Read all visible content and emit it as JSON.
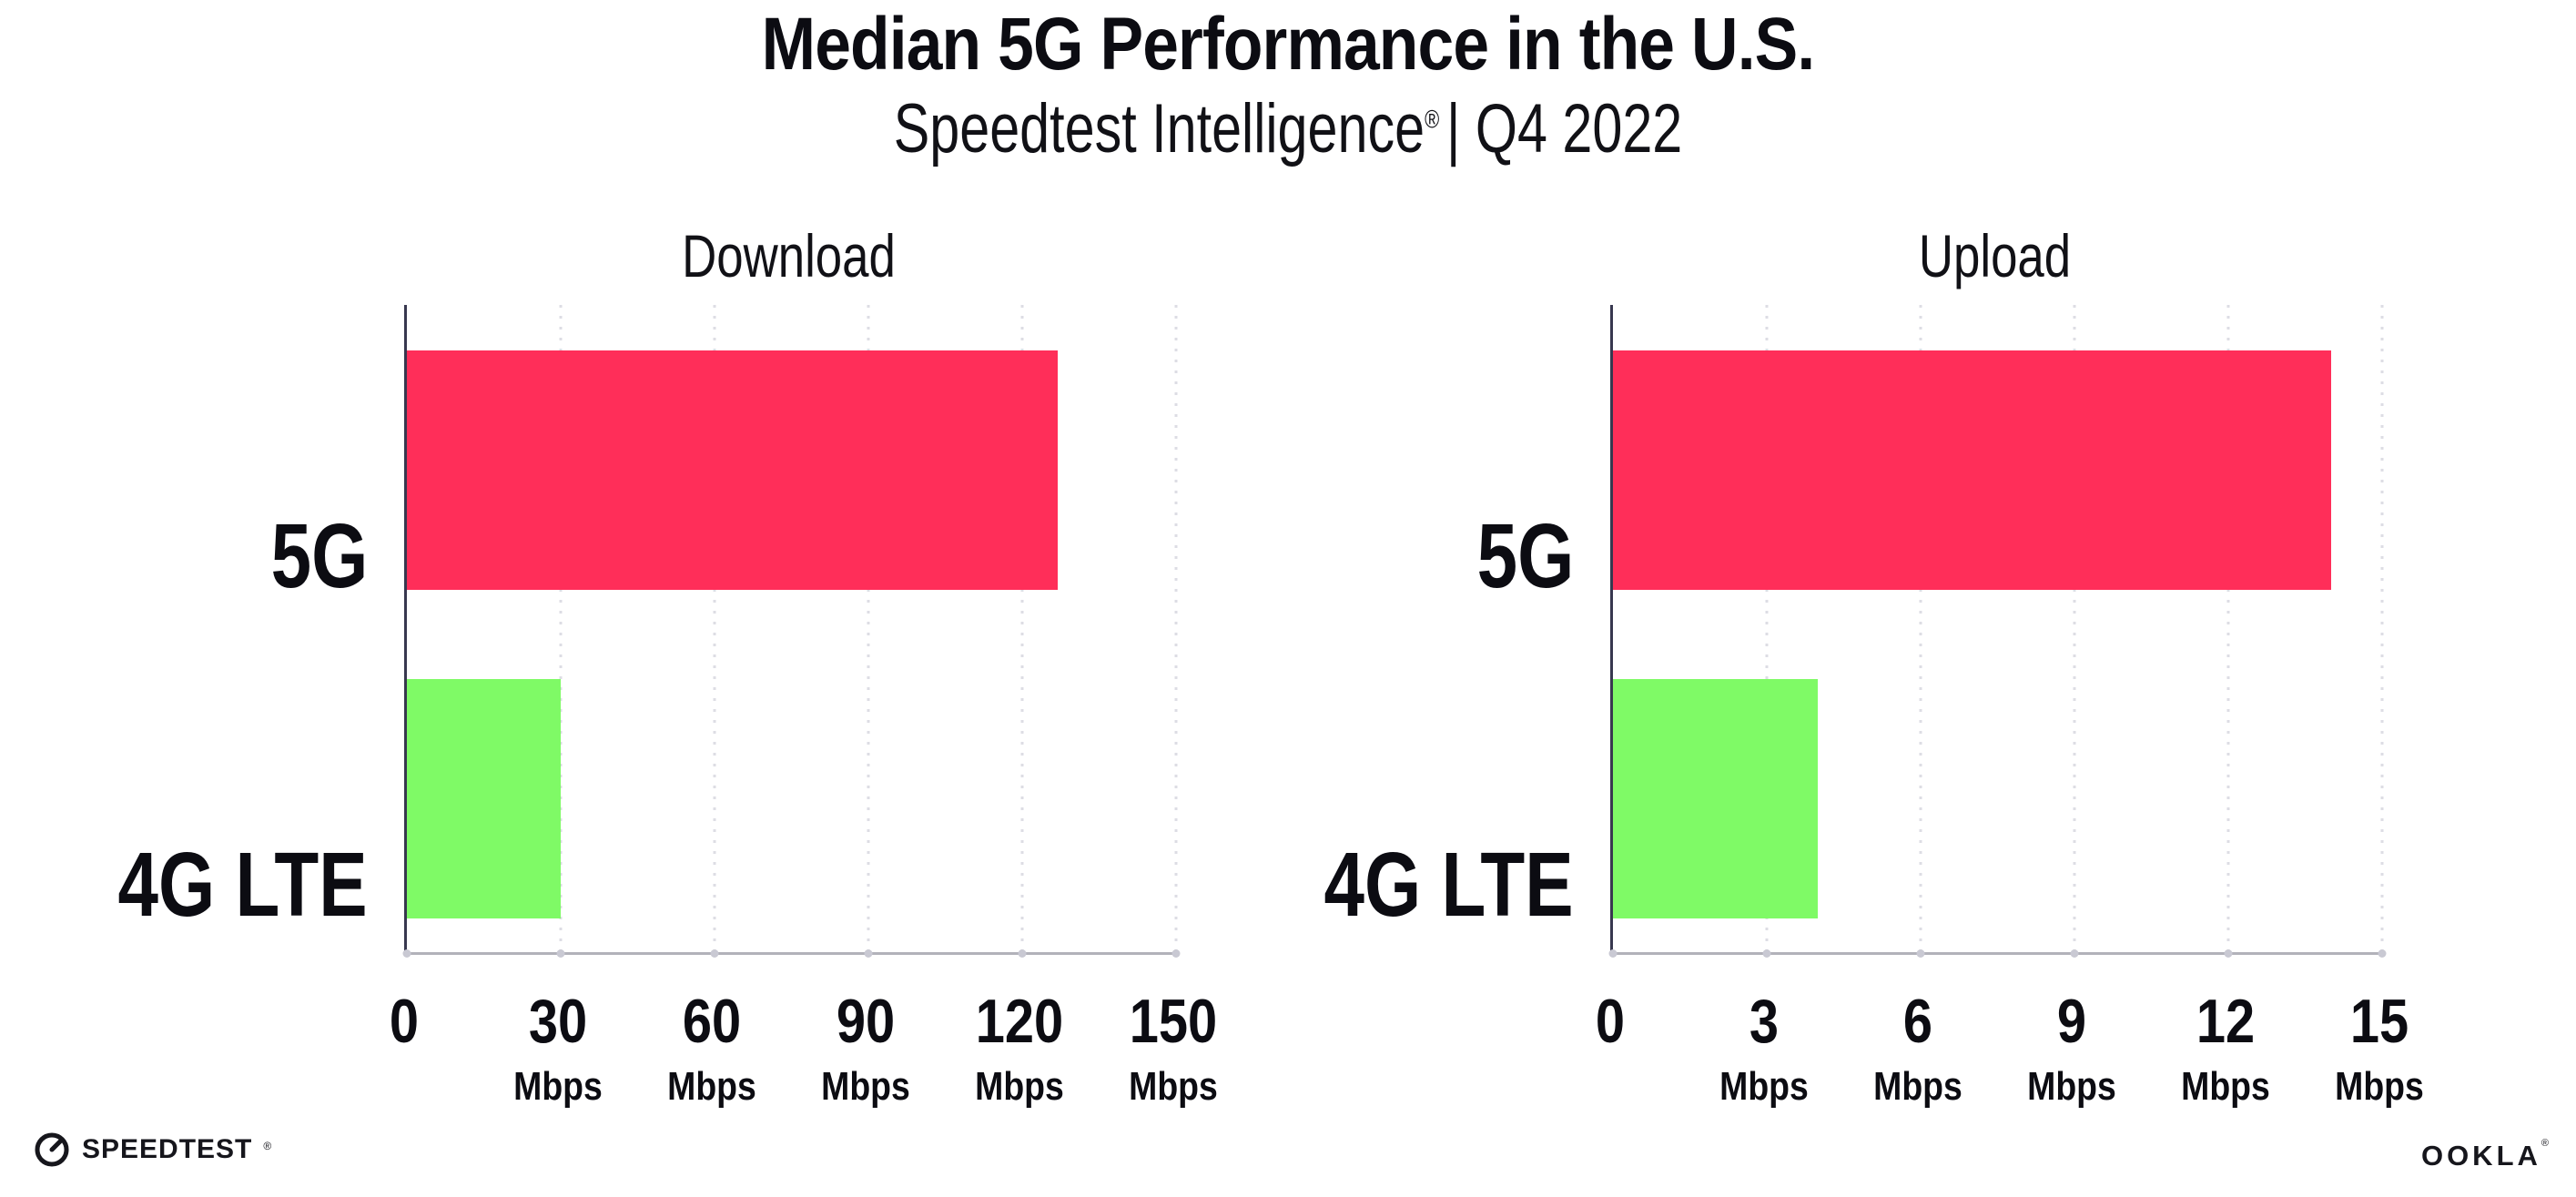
{
  "header": {
    "title": "Median 5G Performance in the U.S.",
    "subtitle_brand": "Speedtest Intelligence",
    "subtitle_reg_mark": "®",
    "subtitle_rest": "| Q4 2022"
  },
  "chart_data": [
    {
      "type": "bar",
      "orientation": "horizontal",
      "title": "Download",
      "categories": [
        "5G",
        "4G LTE"
      ],
      "values": [
        127,
        30
      ],
      "unit": "Mbps",
      "tick_unit": "Mbps",
      "xlim": [
        0,
        150
      ],
      "xticks": [
        0,
        30,
        60,
        90,
        120,
        150
      ],
      "bar_colors": [
        "#ff2e59",
        "#7ffa66"
      ],
      "grid": "dotted-vertical-at-ticks",
      "legend": "none"
    },
    {
      "type": "bar",
      "orientation": "horizontal",
      "title": "Upload",
      "categories": [
        "5G",
        "4G LTE"
      ],
      "values": [
        14,
        4
      ],
      "unit": "Mbps",
      "tick_unit": "Mbps",
      "xlim": [
        0,
        15
      ],
      "xticks": [
        0,
        3,
        6,
        9,
        12,
        15
      ],
      "bar_colors": [
        "#ff2e59",
        "#7ffa66"
      ],
      "grid": "dotted-vertical-at-ticks",
      "legend": "none"
    }
  ],
  "footer": {
    "speedtest_label": "SPEEDTEST",
    "speedtest_mark": "®",
    "ookla_label": "OOKLA",
    "ookla_mark": "®"
  },
  "colors": {
    "bar_5g": "#ff2e59",
    "bar_4g_lte": "#7ffa66",
    "axis_left": "#38384f",
    "axis_bottom": "#b2b2ba",
    "gridline": "#dddde4",
    "tickdot": "#c9c9d3",
    "text": "#0c0c12"
  }
}
